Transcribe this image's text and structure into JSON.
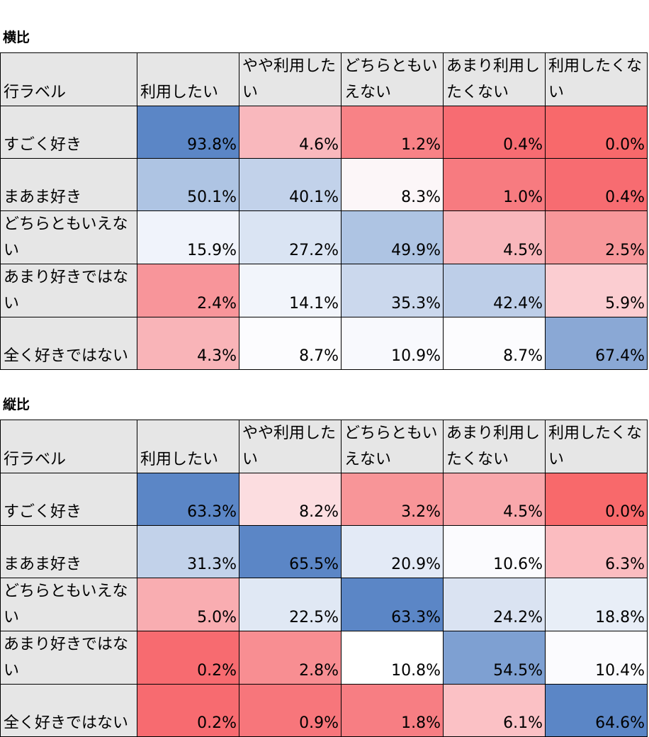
{
  "tables": [
    {
      "title": "横比",
      "corner": "行ラベル",
      "columns": [
        "利用したい",
        "やや利用したい",
        "どちらともいえない",
        "あまり利用したくない",
        "利用したくない"
      ],
      "rows": [
        {
          "label": "すごく好き",
          "values": [
            "93.8%",
            "4.6%",
            "1.2%",
            "0.4%",
            "0.0%"
          ],
          "colors": [
            "#5b86c6",
            "#f9b8bd",
            "#f88286",
            "#f76c72",
            "#f8696b"
          ]
        },
        {
          "label": "まあま好き",
          "values": [
            "50.1%",
            "40.1%",
            "8.3%",
            "1.0%",
            "0.4%"
          ],
          "colors": [
            "#aec4e3",
            "#c2d2ea",
            "#fcf6f8",
            "#f77b80",
            "#f76c71"
          ]
        },
        {
          "label": "どちらともいえない",
          "values": [
            "15.9%",
            "27.2%",
            "49.9%",
            "4.5%",
            "2.5%"
          ],
          "colors": [
            "#f0f3fb",
            "#dae4f3",
            "#aec4e3",
            "#f9b7bc",
            "#f8979a"
          ]
        },
        {
          "label": "あまり好きではない",
          "values": [
            "2.4%",
            "14.1%",
            "35.3%",
            "42.4%",
            "5.9%"
          ],
          "colors": [
            "#f8959a",
            "#f2f5fb",
            "#cbd8ed",
            "#bdcee8",
            "#fbcdd1"
          ]
        },
        {
          "label": "全く好きではない",
          "values": [
            "4.3%",
            "8.7%",
            "10.9%",
            "8.7%",
            "67.4%"
          ],
          "colors": [
            "#f9b4b8",
            "#fcfcfe",
            "#f8f9fd",
            "#fcfcfe",
            "#8aa8d5"
          ]
        }
      ]
    },
    {
      "title": "縦比",
      "corner": "行ラベル",
      "columns": [
        "利用したい",
        "やや利用したい",
        "どちらともいえない",
        "あまり利用したくない",
        "利用したくない"
      ],
      "rows": [
        {
          "label": "すごく好き",
          "values": [
            "63.3%",
            "8.2%",
            "3.2%",
            "4.5%",
            "0.0%"
          ],
          "colors": [
            "#5b86c6",
            "#fcdde0",
            "#f89598",
            "#f9a7ab",
            "#f8696b"
          ]
        },
        {
          "label": "まあま好き",
          "values": [
            "31.3%",
            "65.5%",
            "20.9%",
            "10.6%",
            "6.3%"
          ],
          "colors": [
            "#c2d2ea",
            "#5b86c6",
            "#e3eaf6",
            "#fbfbfe",
            "#fbbcc0"
          ]
        },
        {
          "label": "どちらともいえない",
          "values": [
            "5.0%",
            "22.5%",
            "63.3%",
            "24.2%",
            "18.8%"
          ],
          "colors": [
            "#f9adb1",
            "#e0e8f4",
            "#5b86c6",
            "#dae3f2",
            "#e8eef7"
          ]
        },
        {
          "label": "あまり好きではない",
          "values": [
            "0.2%",
            "2.8%",
            "10.8%",
            "54.5%",
            "10.4%"
          ],
          "colors": [
            "#f76b70",
            "#f88e92",
            "#ffffff",
            "#7ea0d2",
            "#fbfbfe"
          ]
        },
        {
          "label": "全く好きではない",
          "values": [
            "0.2%",
            "0.9%",
            "1.8%",
            "6.1%",
            "64.6%"
          ],
          "colors": [
            "#f76b70",
            "#f7767b",
            "#f77e83",
            "#fbc1c5",
            "#5b86c6"
          ]
        }
      ]
    }
  ]
}
